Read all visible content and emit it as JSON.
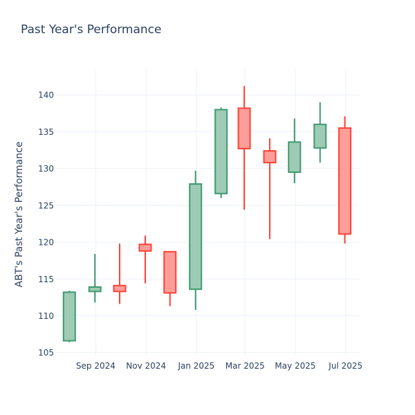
{
  "chart_data": {
    "type": "candlestick",
    "title": "Past Year's Performance",
    "ylabel": "ABT's Past Year's Performance",
    "xlabel": "",
    "ylim": [
      104.5,
      143.5
    ],
    "yticks": [
      105,
      110,
      115,
      120,
      125,
      130,
      135,
      140
    ],
    "xticks": [
      {
        "label": "Sep 2024",
        "date": "2024-09-01"
      },
      {
        "label": "Nov 2024",
        "date": "2024-11-01"
      },
      {
        "label": "Jan 2025",
        "date": "2025-01-01"
      },
      {
        "label": "Mar 2025",
        "date": "2025-03-01"
      },
      {
        "label": "May 2025",
        "date": "2025-05-01"
      },
      {
        "label": "Jul 2025",
        "date": "2025-07-01"
      }
    ],
    "xrange": [
      "2024-07-14",
      "2025-07-18"
    ],
    "grid": true,
    "increasing_color": "#3d9970",
    "increasing_fill": "#9ecbb5",
    "decreasing_color": "#ff4136",
    "decreasing_fill": "#ff9e98",
    "series": [
      {
        "date": "2024-07-31",
        "open": 106.6,
        "high": 113.4,
        "low": 106.4,
        "close": 113.2
      },
      {
        "date": "2024-08-31",
        "open": 113.3,
        "high": 118.4,
        "low": 111.8,
        "close": 113.9
      },
      {
        "date": "2024-09-30",
        "open": 114.1,
        "high": 119.8,
        "low": 111.6,
        "close": 113.3
      },
      {
        "date": "2024-10-31",
        "open": 119.7,
        "high": 120.9,
        "low": 114.4,
        "close": 118.8
      },
      {
        "date": "2024-11-30",
        "open": 118.7,
        "high": 118.7,
        "low": 111.3,
        "close": 113.1
      },
      {
        "date": "2024-12-31",
        "open": 113.6,
        "high": 129.7,
        "low": 110.8,
        "close": 127.9
      },
      {
        "date": "2025-01-31",
        "open": 126.6,
        "high": 138.3,
        "low": 126.0,
        "close": 138.0
      },
      {
        "date": "2025-02-28",
        "open": 138.2,
        "high": 141.2,
        "low": 124.4,
        "close": 132.7
      },
      {
        "date": "2025-03-31",
        "open": 132.4,
        "high": 134.1,
        "low": 120.4,
        "close": 130.8
      },
      {
        "date": "2025-04-30",
        "open": 129.5,
        "high": 136.8,
        "low": 128.0,
        "close": 133.6
      },
      {
        "date": "2025-05-31",
        "open": 132.8,
        "high": 139.0,
        "low": 130.8,
        "close": 136.0
      },
      {
        "date": "2025-06-30",
        "open": 135.5,
        "high": 137.1,
        "low": 119.8,
        "close": 121.1
      }
    ]
  }
}
